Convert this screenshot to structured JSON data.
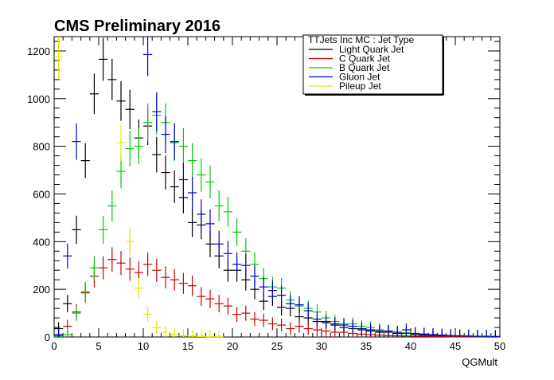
{
  "chart_data": {
    "type": "scatter",
    "title": "CMS Preliminary 2016",
    "xlabel": "QGMult",
    "ylabel": "",
    "xlim": [
      0,
      50
    ],
    "ylim": [
      0,
      1260
    ],
    "x_ticks": [
      0,
      5,
      10,
      15,
      20,
      25,
      30,
      35,
      40,
      45,
      50
    ],
    "y_ticks": [
      0,
      200,
      400,
      600,
      800,
      1000,
      1200
    ],
    "bin_width": 1,
    "grid": false,
    "legend": {
      "title": "TTJets Inc MC : Jet Type",
      "placement": "top-right"
    },
    "series": [
      {
        "name": "Light Quark Jet",
        "color": "#000000",
        "x": [
          0.5,
          1.5,
          2.5,
          3.5,
          4.5,
          5.5,
          6.5,
          7.5,
          8.5,
          9.5,
          10.5,
          11.5,
          12.5,
          13.5,
          14.5,
          15.5,
          16.5,
          17.5,
          18.5,
          19.5,
          20.5,
          21.5,
          22.5,
          23.5,
          24.5,
          25.5,
          26.5,
          27.5,
          28.5,
          29.5,
          30.5,
          31.5,
          32.5,
          33.5,
          34.5,
          35.5,
          36.5,
          37.5,
          38.5,
          39.5,
          40.5,
          41.5,
          42.5,
          43.5,
          44.5,
          45.5,
          46.5,
          47.5,
          48.5,
          49.5
        ],
        "values": [
          35,
          140,
          450,
          740,
          1020,
          1165,
          1080,
          990,
          955,
          835,
          885,
          765,
          690,
          630,
          585,
          480,
          470,
          390,
          340,
          280,
          280,
          240,
          200,
          150,
          170,
          125,
          120,
          85,
          80,
          65,
          60,
          50,
          40,
          35,
          30,
          25,
          20,
          20,
          15,
          15,
          10,
          8,
          6,
          5,
          4,
          3,
          2,
          2,
          1,
          1
        ]
      },
      {
        "name": "C Quark Jet",
        "color": "#cc0000",
        "x": [
          0.5,
          1.5,
          2.5,
          3.5,
          4.5,
          5.5,
          6.5,
          7.5,
          8.5,
          9.5,
          10.5,
          11.5,
          12.5,
          13.5,
          14.5,
          15.5,
          16.5,
          17.5,
          18.5,
          19.5,
          20.5,
          21.5,
          22.5,
          23.5,
          24.5,
          25.5,
          26.5,
          27.5,
          28.5,
          29.5,
          30.5,
          31.5,
          32.5,
          33.5,
          34.5,
          35.5,
          36.5,
          37.5,
          38.5,
          39.5,
          40.5,
          41.5,
          42.5,
          43.5,
          44.5,
          45.5,
          46.5,
          47.5,
          48.5,
          49.5
        ],
        "values": [
          5,
          45,
          105,
          185,
          255,
          290,
          325,
          310,
          285,
          270,
          305,
          280,
          250,
          240,
          225,
          215,
          170,
          160,
          140,
          130,
          95,
          100,
          75,
          70,
          55,
          50,
          35,
          45,
          35,
          30,
          25,
          20,
          20,
          15,
          12,
          10,
          8,
          6,
          5,
          4,
          3,
          3,
          2,
          2,
          1,
          1,
          1,
          1,
          0,
          0
        ]
      },
      {
        "name": "B Quark Jet",
        "color": "#00cc00",
        "x": [
          0.5,
          1.5,
          2.5,
          3.5,
          4.5,
          5.5,
          6.5,
          7.5,
          8.5,
          9.5,
          10.5,
          11.5,
          12.5,
          13.5,
          14.5,
          15.5,
          16.5,
          17.5,
          18.5,
          19.5,
          20.5,
          21.5,
          22.5,
          23.5,
          24.5,
          25.5,
          26.5,
          27.5,
          28.5,
          29.5,
          30.5,
          31.5,
          32.5,
          33.5,
          34.5,
          35.5,
          36.5,
          37.5,
          38.5,
          39.5,
          40.5,
          41.5,
          42.5,
          43.5,
          44.5,
          45.5,
          46.5,
          47.5,
          48.5,
          49.5
        ],
        "values": [
          2,
          10,
          100,
          190,
          290,
          450,
          550,
          695,
          790,
          800,
          900,
          930,
          900,
          815,
          800,
          740,
          680,
          650,
          550,
          525,
          440,
          360,
          305,
          245,
          210,
          205,
          155,
          130,
          120,
          105,
          80,
          65,
          55,
          55,
          45,
          40,
          30,
          25,
          20,
          18,
          15,
          12,
          10,
          8,
          6,
          5,
          4,
          3,
          2,
          2
        ]
      },
      {
        "name": "Gluon Jet",
        "color": "#0000cc",
        "x": [
          0.5,
          1.5,
          2.5,
          3.5,
          4.5,
          5.5,
          6.5,
          7.5,
          8.5,
          9.5,
          10.5,
          11.5,
          12.5,
          13.5,
          14.5,
          15.5,
          16.5,
          17.5,
          18.5,
          19.5,
          20.5,
          21.5,
          22.5,
          23.5,
          24.5,
          25.5,
          26.5,
          27.5,
          28.5,
          29.5,
          30.5,
          31.5,
          32.5,
          33.5,
          34.5,
          35.5,
          36.5,
          37.5,
          38.5,
          39.5,
          40.5,
          41.5,
          42.5,
          43.5,
          44.5,
          45.5,
          46.5,
          47.5,
          48.5,
          49.5
        ],
        "values": [
          10,
          340,
          820,
          0,
          0,
          0,
          0,
          0,
          0,
          0,
          1185,
          945,
          850,
          820,
          660,
          605,
          515,
          475,
          390,
          350,
          305,
          300,
          255,
          210,
          195,
          175,
          140,
          135,
          110,
          75,
          65,
          55,
          50,
          45,
          35,
          30,
          25,
          25,
          20,
          30,
          15,
          12,
          10,
          8,
          6,
          5,
          4,
          3,
          3,
          2
        ]
      },
      {
        "name": "Pileup Jet",
        "color": "#e6e600",
        "x": [
          0.5,
          1.5,
          2.5,
          3.5,
          4.5,
          5.5,
          6.5,
          7.5,
          8.5,
          9.5,
          10.5,
          11.5,
          12.5,
          13.5,
          14.5,
          15.5,
          16.5,
          17.5,
          18.5,
          19.5
        ],
        "values": [
          1175,
          0,
          0,
          0,
          0,
          0,
          0,
          815,
          400,
          205,
          95,
          40,
          20,
          10,
          5,
          3,
          2,
          1,
          1,
          0
        ]
      }
    ]
  }
}
